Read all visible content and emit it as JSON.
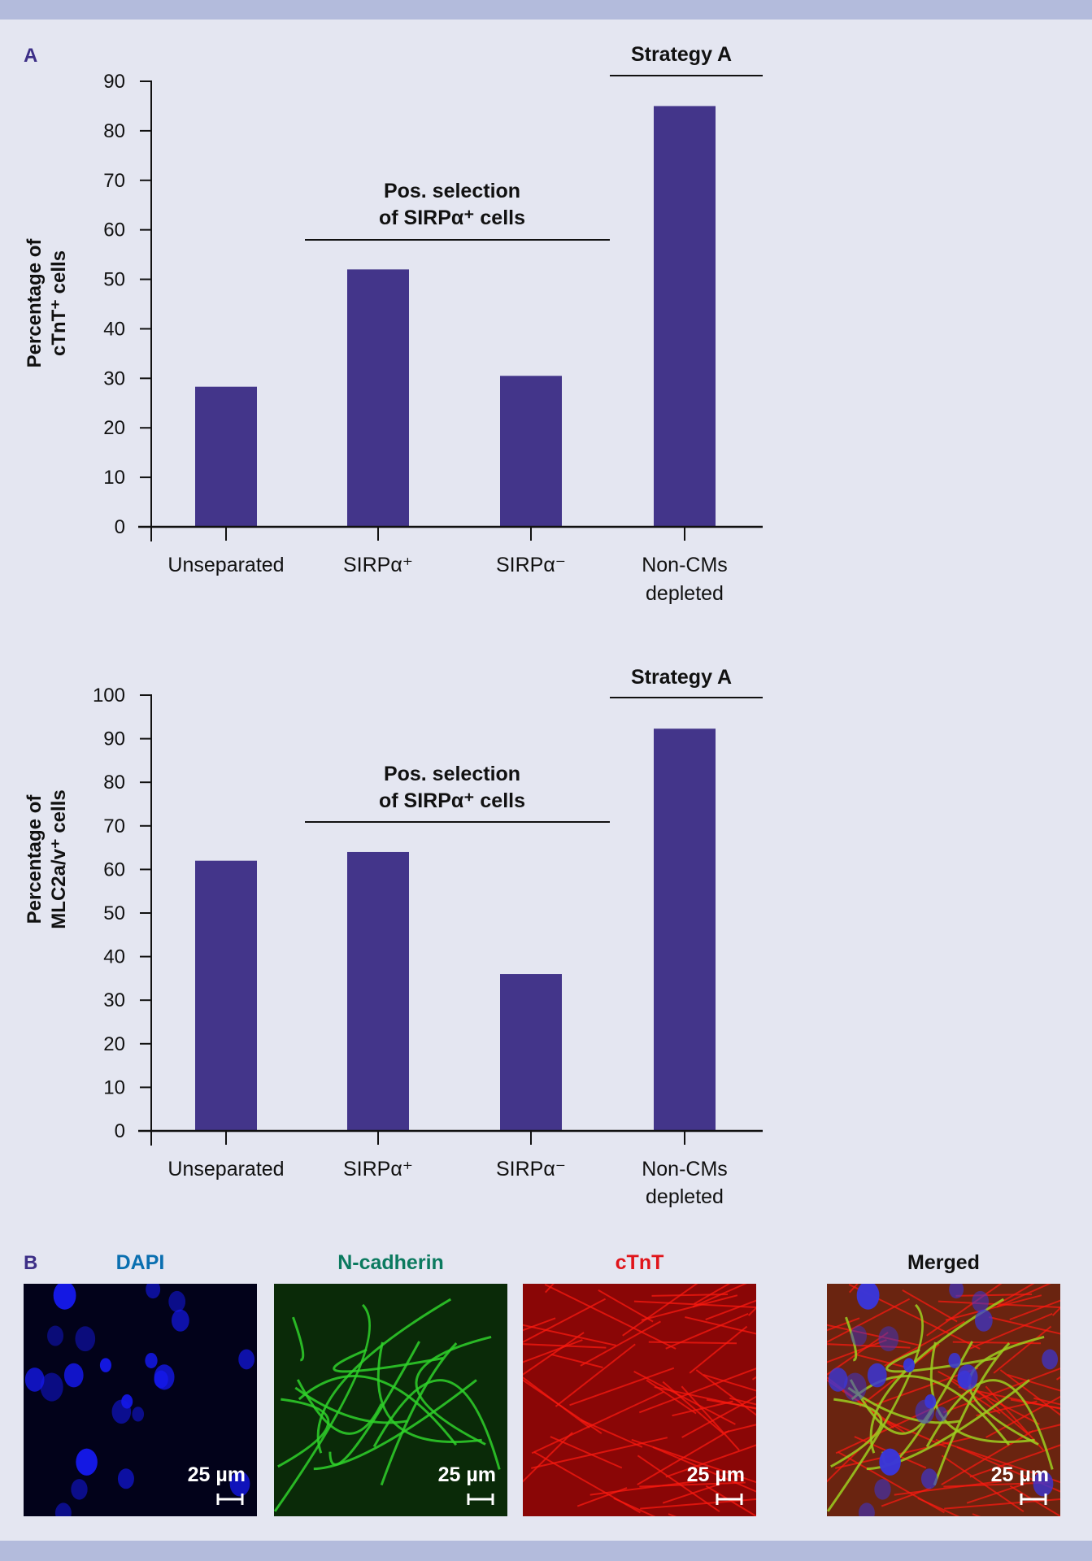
{
  "panel_labels": {
    "a": "A",
    "b": "B"
  },
  "colors": {
    "background": "#e4e6f1",
    "band": "#b3bbdc",
    "bar": "#43358a",
    "panel_letter": "#3d2f87"
  },
  "chart_data": [
    {
      "type": "bar",
      "categories": [
        "Unseparated",
        "SIRPα⁺",
        "SIRPα⁻",
        "Non-CMs depleted"
      ],
      "category_lines": [
        [
          "Unseparated"
        ],
        [
          "SIRPα⁺"
        ],
        [
          "SIRPα⁻"
        ],
        [
          "Non-CMs",
          "depleted"
        ]
      ],
      "values": [
        28.3,
        52,
        30.5,
        85
      ],
      "ylabel_lines": [
        "Percentage of",
        "cTnT⁺ cells"
      ],
      "xlabel": "",
      "ylim": [
        0,
        90
      ],
      "yticks": [
        0,
        10,
        20,
        30,
        40,
        50,
        60,
        70,
        80,
        90
      ],
      "grid": false,
      "annotations": [
        {
          "lines": [
            "Pos. selection",
            "of SIRPα⁺ cells"
          ],
          "spans": [
            "SIRPα⁺",
            "SIRPα⁻"
          ]
        },
        {
          "lines": [
            "Strategy A"
          ],
          "spans": [
            "Non-CMs depleted"
          ]
        }
      ]
    },
    {
      "type": "bar",
      "categories": [
        "Unseparated",
        "SIRPα⁺",
        "SIRPα⁻",
        "Non-CMs depleted"
      ],
      "category_lines": [
        [
          "Unseparated"
        ],
        [
          "SIRPα⁺"
        ],
        [
          "SIRPα⁻"
        ],
        [
          "Non-CMs",
          "depleted"
        ]
      ],
      "values": [
        62,
        64,
        36,
        92.3
      ],
      "ylabel_lines": [
        "Percentage of",
        "MLC2a/v⁺ cells"
      ],
      "xlabel": "",
      "ylim": [
        0,
        100
      ],
      "yticks": [
        0,
        10,
        20,
        30,
        40,
        50,
        60,
        70,
        80,
        90,
        100
      ],
      "grid": false,
      "annotations": [
        {
          "lines": [
            "Pos. selection",
            "of SIRPα⁺ cells"
          ],
          "spans": [
            "SIRPα⁺",
            "SIRPα⁻"
          ]
        },
        {
          "lines": [
            "Strategy A"
          ],
          "spans": [
            "Non-CMs depleted"
          ]
        }
      ]
    }
  ],
  "micrographs": [
    {
      "title": "DAPI",
      "color": "#0a6fb0",
      "scale_label": "25 µm",
      "stain": "blue"
    },
    {
      "title": "N-cadherin",
      "color": "#0b7a5f",
      "scale_label": "25 µm",
      "stain": "green"
    },
    {
      "title": "cTnT",
      "color": "#e0151b",
      "scale_label": "25 µm",
      "stain": "red"
    },
    {
      "title": "Merged",
      "color": "#111111",
      "scale_label": "25 µm",
      "stain": "merged"
    }
  ]
}
